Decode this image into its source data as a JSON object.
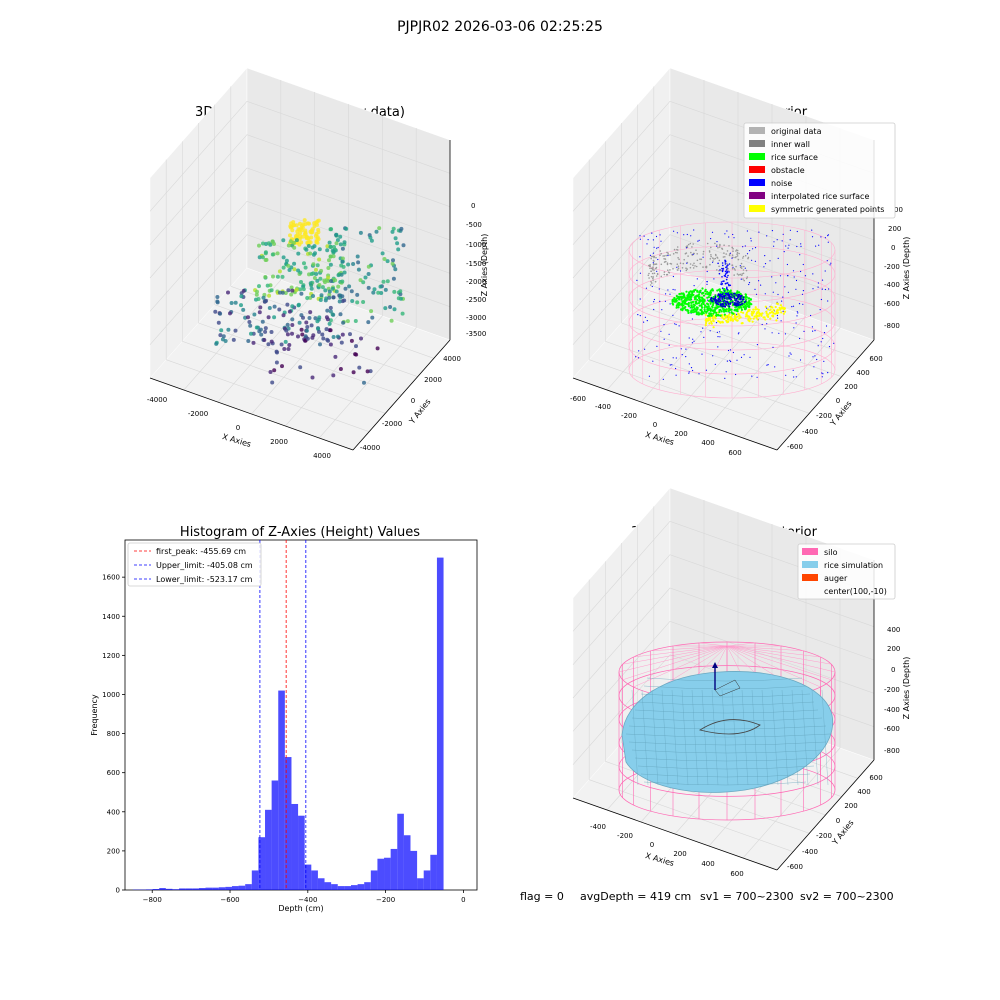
{
  "figure": {
    "suptitle": "PJPJR02 2026-03-06 02:25:25"
  },
  "chart_data": [
    {
      "type": "scatter",
      "title": "3D Plot of Silo Interior(row data)",
      "xlabel": "X Axies",
      "ylabel": "Y Axies",
      "zlabel": "Z Axies (Depth)",
      "xticks": [
        "-4000",
        "-2000",
        "0",
        "2000",
        "4000"
      ],
      "yticks": [
        "-4000",
        "-2000",
        "0",
        "2000",
        "4000"
      ],
      "zticks": [
        "0",
        "-500",
        "-1000",
        "-1500",
        "-2000",
        "-2500",
        "-3000",
        "-3500"
      ],
      "xlim": [
        -4500,
        4500
      ],
      "ylim": [
        -4500,
        4500
      ],
      "zlim": [
        -3700,
        100
      ],
      "colormap": "viridis",
      "grid": true
    },
    {
      "type": "scatter",
      "title": "3D classify of Silo Interior",
      "xlabel": "X Axies",
      "ylabel": "Y Axies",
      "zlabel": "Z Axies (Depth)",
      "xticks": [
        "-600",
        "-400",
        "-200",
        "0",
        "200",
        "400",
        "600"
      ],
      "yticks": [
        "-600",
        "-400",
        "-200",
        "0",
        "200",
        "400",
        "600"
      ],
      "zticks": [
        "200",
        "0",
        "-200",
        "-400",
        "-600",
        "-800"
      ],
      "ztick_partial": "00",
      "legend": {
        "placement": "upper-right",
        "entries": [
          {
            "label": "original data",
            "color": "#b3b3b3"
          },
          {
            "label": "inner wall",
            "color": "#808080"
          },
          {
            "label": "rice surface",
            "color": "#00ff00"
          },
          {
            "label": "obstacle",
            "color": "#ff0000"
          },
          {
            "label": "noise",
            "color": "#0000ff"
          },
          {
            "label": "interpolated rice surface",
            "color": "#800080"
          },
          {
            "label": "symmetric generated points",
            "color": "#ffff00"
          }
        ]
      },
      "grid": true
    },
    {
      "type": "bar",
      "title": "Histogram of Z-Axies (Height) Values",
      "xlabel": "Depth (cm)",
      "ylabel": "Frequency",
      "xlim": [
        -870,
        35
      ],
      "ylim": [
        0,
        1790
      ],
      "xticks": [
        -800,
        -600,
        -400,
        -200,
        0
      ],
      "yticks": [
        0,
        200,
        400,
        600,
        800,
        1000,
        1200,
        1400,
        1600
      ],
      "bar_color": "#0000ff",
      "bin_edges_start": -850,
      "bin_width": 17,
      "values": [
        2,
        2,
        3,
        5,
        10,
        6,
        4,
        8,
        8,
        8,
        10,
        12,
        12,
        14,
        16,
        20,
        22,
        30,
        100,
        270,
        410,
        560,
        1020,
        680,
        440,
        380,
        130,
        100,
        60,
        40,
        30,
        20,
        20,
        25,
        30,
        40,
        100,
        160,
        165,
        210,
        390,
        280,
        200,
        60,
        100,
        180,
        1700
      ],
      "vlines": [
        {
          "label": "first_peak: -455.69 cm",
          "x": -455.69,
          "color": "#ff0000"
        },
        {
          "label": "Upper_limit: -405.08 cm",
          "x": -405.08,
          "color": "#0000ff"
        },
        {
          "label": "Lower_limit: -523.17 cm",
          "x": -523.17,
          "color": "#0000ff"
        }
      ],
      "legend": {
        "placement": "upper-left"
      },
      "grid": false
    },
    {
      "type": "scatter",
      "title": "3D simulation of Silo Interior",
      "xlabel": "X Axies",
      "ylabel": "Y Axies",
      "zlabel": "Z Axies (Depth)",
      "xticks": [
        "-400",
        "-200",
        "0",
        "200",
        "400",
        "600"
      ],
      "yticks": [
        "-600",
        "-400",
        "-200",
        "0",
        "200",
        "400",
        "600"
      ],
      "zticks": [
        "400",
        "200",
        "0",
        "-200",
        "-400",
        "-600",
        "-800"
      ],
      "legend": {
        "placement": "upper-right",
        "entries": [
          {
            "label": "silo",
            "color": "#ff69b4"
          },
          {
            "label": "rice simulation",
            "color": "#87ceeb"
          },
          {
            "label": "auger",
            "color": "#ff4500"
          },
          {
            "label": "center(100,-10)",
            "color": ""
          }
        ]
      },
      "grid": true
    }
  ],
  "status": {
    "flag": "flag = 0",
    "avg": "avgDepth = 419 cm",
    "sv1": "sv1 = 700~2300",
    "sv2": "sv2 = 700~2300"
  }
}
